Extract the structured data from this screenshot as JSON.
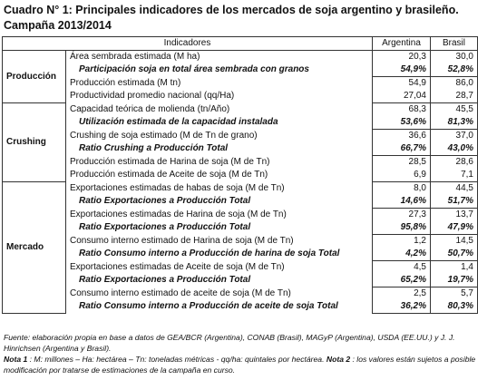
{
  "header": {
    "title_line1": "Cuadro N° 1: Principales indicadores de los mercados de soja argentino y brasileño.",
    "title_line2": "Campaña 2013/2014"
  },
  "table": {
    "columns": [
      "Indicadores",
      "Argentina",
      "Brasil"
    ],
    "groups": [
      {
        "name": "Producción",
        "rows": [
          {
            "indicator": "Área sembrada estimada (M ha)",
            "argentina": "20,3",
            "brasil": "30,0"
          },
          {
            "indicator": "Participación soja en total área sembrada con granos",
            "argentina": "54,9%",
            "brasil": "52,8%",
            "emphasis": true
          },
          {
            "indicator": "Producción estimada (M tn)",
            "argentina": "54,9",
            "brasil": "86,0"
          },
          {
            "indicator": "Productividad promedio nacional (qq/Ha)",
            "argentina": "27,04",
            "brasil": "28,7"
          }
        ]
      },
      {
        "name": "Crushing",
        "rows": [
          {
            "indicator": "Capacidad teórica de molienda (tn/Año)",
            "argentina": "68,3",
            "brasil": "45,5"
          },
          {
            "indicator": "Utilización estimada de la capacidad instalada",
            "argentina": "53,6%",
            "brasil": "81,3%",
            "emphasis": true
          },
          {
            "indicator": "Crushing de soja estimado (M de Tn de grano)",
            "argentina": "36,6",
            "brasil": "37,0"
          },
          {
            "indicator": "Ratio Crushing a Producción Total",
            "argentina": "66,7%",
            "brasil": "43,0%",
            "emphasis": true
          },
          {
            "indicator": "Producción estimada de Harina de soja (M de Tn)",
            "argentina": "28,5",
            "brasil": "28,6"
          },
          {
            "indicator": "Producción estimada de Aceite de soja (M de Tn)",
            "argentina": "6,9",
            "brasil": "7,1"
          }
        ]
      },
      {
        "name": "Mercado",
        "rows": [
          {
            "indicator": "Exportaciones estimadas de habas de soja (M de Tn)",
            "argentina": "8,0",
            "brasil": "44,5"
          },
          {
            "indicator": "Ratio Exportaciones a Producción Total",
            "argentina": "14,6%",
            "brasil": "51,7%",
            "emphasis": true
          },
          {
            "indicator": "Exportaciones estimadas de Harina de soja (M de Tn)",
            "argentina": "27,3",
            "brasil": "13,7"
          },
          {
            "indicator": "Ratio Exportaciones a Producción Total",
            "argentina": "95,8%",
            "brasil": "47,9%",
            "emphasis": true
          },
          {
            "indicator": "Consumo interno estimado de Harina de soja (M de Tn)",
            "argentina": "1,2",
            "brasil": "14,5"
          },
          {
            "indicator": "Ratio Consumo interno a Producción de harina de soja Total",
            "argentina": "4,2%",
            "brasil": "50,7%",
            "emphasis": true
          },
          {
            "indicator": "Exportaciones estimadas de Aceite de soja (M de Tn)",
            "argentina": "4,5",
            "brasil": "1,4"
          },
          {
            "indicator": "Ratio Exportaciones a Producción Total",
            "argentina": "65,2%",
            "brasil": "19,7%",
            "emphasis": true
          },
          {
            "indicator": "Consumo interno estimado de aceite de soja (M de Tn)",
            "argentina": "2,5",
            "brasil": "5,7"
          },
          {
            "indicator": "Ratio Consumo interno a Producción de aceite de soja Total",
            "argentina": "36,2%",
            "brasil": "80,3%",
            "emphasis": true
          }
        ]
      }
    ]
  },
  "footer": {
    "source": "Fuente: elaboración propia en base a datos de GEA/BCR (Argentina), CONAB (Brasil), MAGyP (Argentina), USDA (EE.UU.) y J. J. Hinrichsen (Argentina y Brasil).",
    "note1_label": "Nota 1",
    "note1_text": ": M: millones – Ha: hectárea – Tn: toneladas métricas - qq/ha: quintales por hectárea.",
    "note2_label": "Nota 2",
    "note2_text": ": los valores están sujetos a posible modificación por tratarse de estimaciones de la campaña en curso."
  }
}
